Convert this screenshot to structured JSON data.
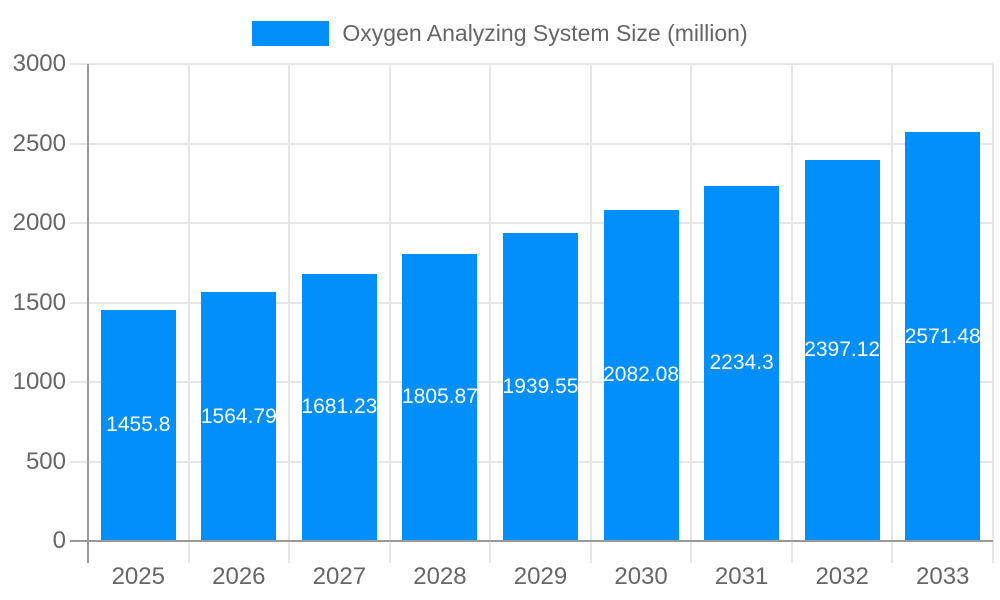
{
  "chart_data": {
    "type": "bar",
    "title": "Oxygen Analyzing System Size (million)",
    "legend_label": "Oxygen Analyzing System Size (million)",
    "legend_position": "top-center",
    "xlabel": "",
    "ylabel": "",
    "categories": [
      "2025",
      "2026",
      "2027",
      "2028",
      "2029",
      "2030",
      "2031",
      "2032",
      "2033"
    ],
    "values": [
      1455.8,
      1564.79,
      1681.23,
      1805.87,
      1939.55,
      2082.08,
      2234.3,
      2397.12,
      2571.48
    ],
    "bar_labels": [
      "1455.8",
      "1564.79",
      "1681.23",
      "1805.87",
      "1939.55",
      "2082.08",
      "2234.3",
      "2397.12",
      "2571.48"
    ],
    "ylim": [
      0,
      3000
    ],
    "y_ticks": [
      0,
      500,
      1000,
      1500,
      2000,
      2500,
      3000
    ],
    "grid": true,
    "colors": {
      "bar": "#008FFB",
      "grid_light": "#e6e6e6",
      "axis_dark": "#999999",
      "tick_text": "#666666",
      "bar_label_text": "#ffffff",
      "background": "#ffffff"
    }
  }
}
